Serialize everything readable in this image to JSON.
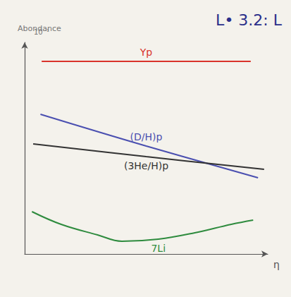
{
  "chart_data": {
    "type": "line",
    "title": "L• 3.2: L",
    "y_label": "Abondance",
    "x_label": "η",
    "annotations": [
      "10⁻¹"
    ],
    "xlim": [
      0,
      10
    ],
    "ylim": [
      0,
      10
    ],
    "tick_labels": false,
    "grid": false,
    "series": [
      {
        "name": "Yp",
        "color": "#d9332b",
        "line_style": "solid",
        "x": [
          0.7,
          5,
          9.3
        ],
        "values": [
          9.1,
          9.1,
          9.1
        ]
      },
      {
        "name": "(D/H)p",
        "color": "#4a4fb0",
        "line_style": "solid",
        "x": [
          0.65,
          5,
          9.6
        ],
        "values": [
          6.6,
          5.1,
          3.6
        ]
      },
      {
        "name": "(3He/H)p",
        "color": "#333333",
        "line_style": "solid",
        "x": [
          0.35,
          5,
          9.85
        ],
        "values": [
          5.2,
          4.6,
          4.0
        ]
      },
      {
        "name": "7Li",
        "color": "#2e8b3e",
        "line_style": "solid",
        "x": [
          0.3,
          1.5,
          3,
          4,
          5.5,
          7,
          8.5,
          9.4
        ],
        "values": [
          2.0,
          1.4,
          0.9,
          0.6,
          0.7,
          1.0,
          1.4,
          1.6
        ]
      }
    ]
  }
}
